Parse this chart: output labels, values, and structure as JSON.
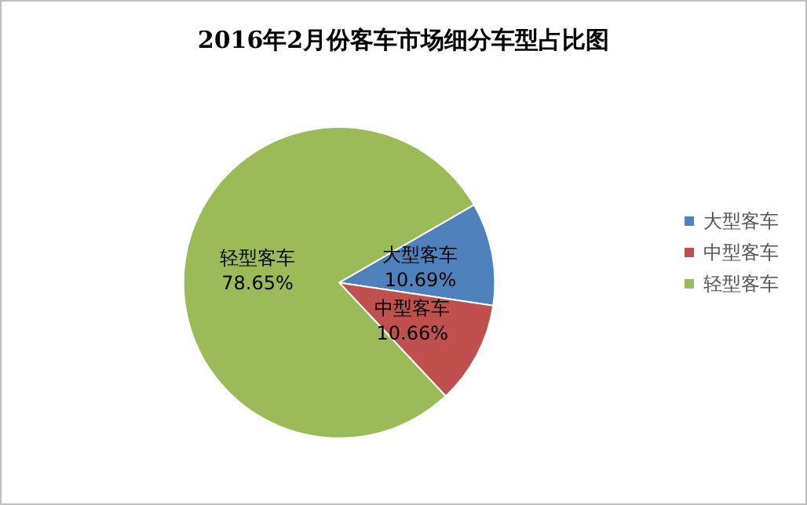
{
  "chart_data": {
    "type": "pie",
    "title": "2016年2月份客车市场细分车型占比图",
    "categories": [
      "大型客车",
      "中型客车",
      "轻型客车"
    ],
    "values": [
      10.69,
      10.66,
      78.65
    ],
    "value_labels": [
      "10.69%",
      "10.66%",
      "78.65%"
    ],
    "colors": [
      "#4f81bd",
      "#c0504d",
      "#9bbb59"
    ],
    "legend": "right"
  }
}
